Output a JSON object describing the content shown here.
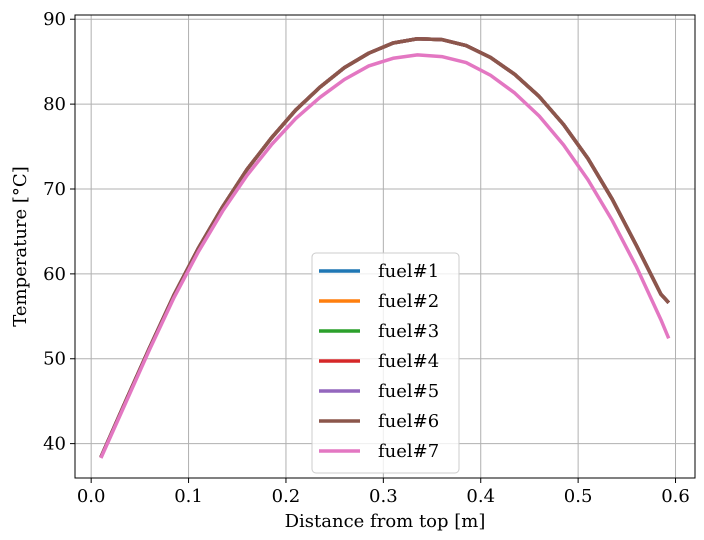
{
  "chart_data": {
    "type": "line",
    "xlabel": "Distance from top [m]",
    "ylabel": "Temperature [°C]",
    "xlim": [
      -0.0166,
      0.62
    ],
    "ylim": [
      35.95,
      90.5
    ],
    "xticks": [
      0.0,
      0.1,
      0.2,
      0.3,
      0.4,
      0.5,
      0.6
    ],
    "xtick_labels": [
      "0.0",
      "0.1",
      "0.2",
      "0.3",
      "0.4",
      "0.5",
      "0.6"
    ],
    "yticks": [
      40,
      50,
      60,
      70,
      80,
      90
    ],
    "ytick_labels": [
      "40",
      "50",
      "60",
      "70",
      "80",
      "90"
    ],
    "grid": true,
    "legend_position": "lower-center",
    "x": [
      0.01,
      0.035,
      0.06,
      0.085,
      0.11,
      0.135,
      0.16,
      0.185,
      0.21,
      0.235,
      0.26,
      0.285,
      0.31,
      0.335,
      0.36,
      0.385,
      0.41,
      0.435,
      0.46,
      0.485,
      0.51,
      0.535,
      0.56,
      0.585,
      0.593
    ],
    "series": [
      {
        "name": "fuel#1",
        "color": "#1f77b4",
        "values": [
          38.4,
          44.9,
          51.3,
          57.5,
          63.0,
          67.9,
          72.3,
          76.0,
          79.3,
          82.0,
          84.3,
          86.0,
          87.2,
          87.7,
          87.6,
          86.9,
          85.5,
          83.5,
          80.9,
          77.6,
          73.6,
          68.8,
          63.3,
          57.6,
          56.6
        ]
      },
      {
        "name": "fuel#2",
        "color": "#ff7f0e",
        "values": [
          38.4,
          44.9,
          51.3,
          57.5,
          63.0,
          67.9,
          72.3,
          76.0,
          79.3,
          82.0,
          84.3,
          86.0,
          87.2,
          87.7,
          87.6,
          86.9,
          85.5,
          83.5,
          80.9,
          77.6,
          73.6,
          68.8,
          63.3,
          57.6,
          56.6
        ]
      },
      {
        "name": "fuel#3",
        "color": "#2ca02c",
        "values": [
          38.4,
          44.9,
          51.3,
          57.5,
          63.0,
          67.9,
          72.3,
          76.0,
          79.3,
          82.0,
          84.3,
          86.0,
          87.2,
          87.7,
          87.6,
          86.9,
          85.5,
          83.5,
          80.9,
          77.6,
          73.6,
          68.8,
          63.3,
          57.6,
          56.6
        ]
      },
      {
        "name": "fuel#4",
        "color": "#d62728",
        "values": [
          38.4,
          44.9,
          51.3,
          57.5,
          63.0,
          67.9,
          72.3,
          76.0,
          79.3,
          82.0,
          84.3,
          86.0,
          87.2,
          87.7,
          87.6,
          86.9,
          85.5,
          83.5,
          80.9,
          77.6,
          73.6,
          68.8,
          63.3,
          57.6,
          56.6
        ]
      },
      {
        "name": "fuel#5",
        "color": "#9467bd",
        "values": [
          38.4,
          44.9,
          51.3,
          57.5,
          63.0,
          67.9,
          72.3,
          76.0,
          79.3,
          82.0,
          84.3,
          86.0,
          87.2,
          87.7,
          87.6,
          86.9,
          85.5,
          83.5,
          80.9,
          77.6,
          73.6,
          68.8,
          63.3,
          57.6,
          56.6
        ]
      },
      {
        "name": "fuel#6",
        "color": "#8c564b",
        "values": [
          38.4,
          44.9,
          51.3,
          57.5,
          63.0,
          67.9,
          72.3,
          76.0,
          79.3,
          82.0,
          84.3,
          86.0,
          87.2,
          87.7,
          87.6,
          86.9,
          85.5,
          83.5,
          80.9,
          77.6,
          73.6,
          68.8,
          63.3,
          57.6,
          56.6
        ]
      },
      {
        "name": "fuel#7",
        "color": "#e377c2",
        "values": [
          38.3,
          44.7,
          51.1,
          57.2,
          62.6,
          67.4,
          71.6,
          75.2,
          78.3,
          80.8,
          82.9,
          84.5,
          85.4,
          85.8,
          85.6,
          84.9,
          83.4,
          81.3,
          78.6,
          75.2,
          71.1,
          66.3,
          60.8,
          54.6,
          52.4
        ]
      }
    ]
  }
}
